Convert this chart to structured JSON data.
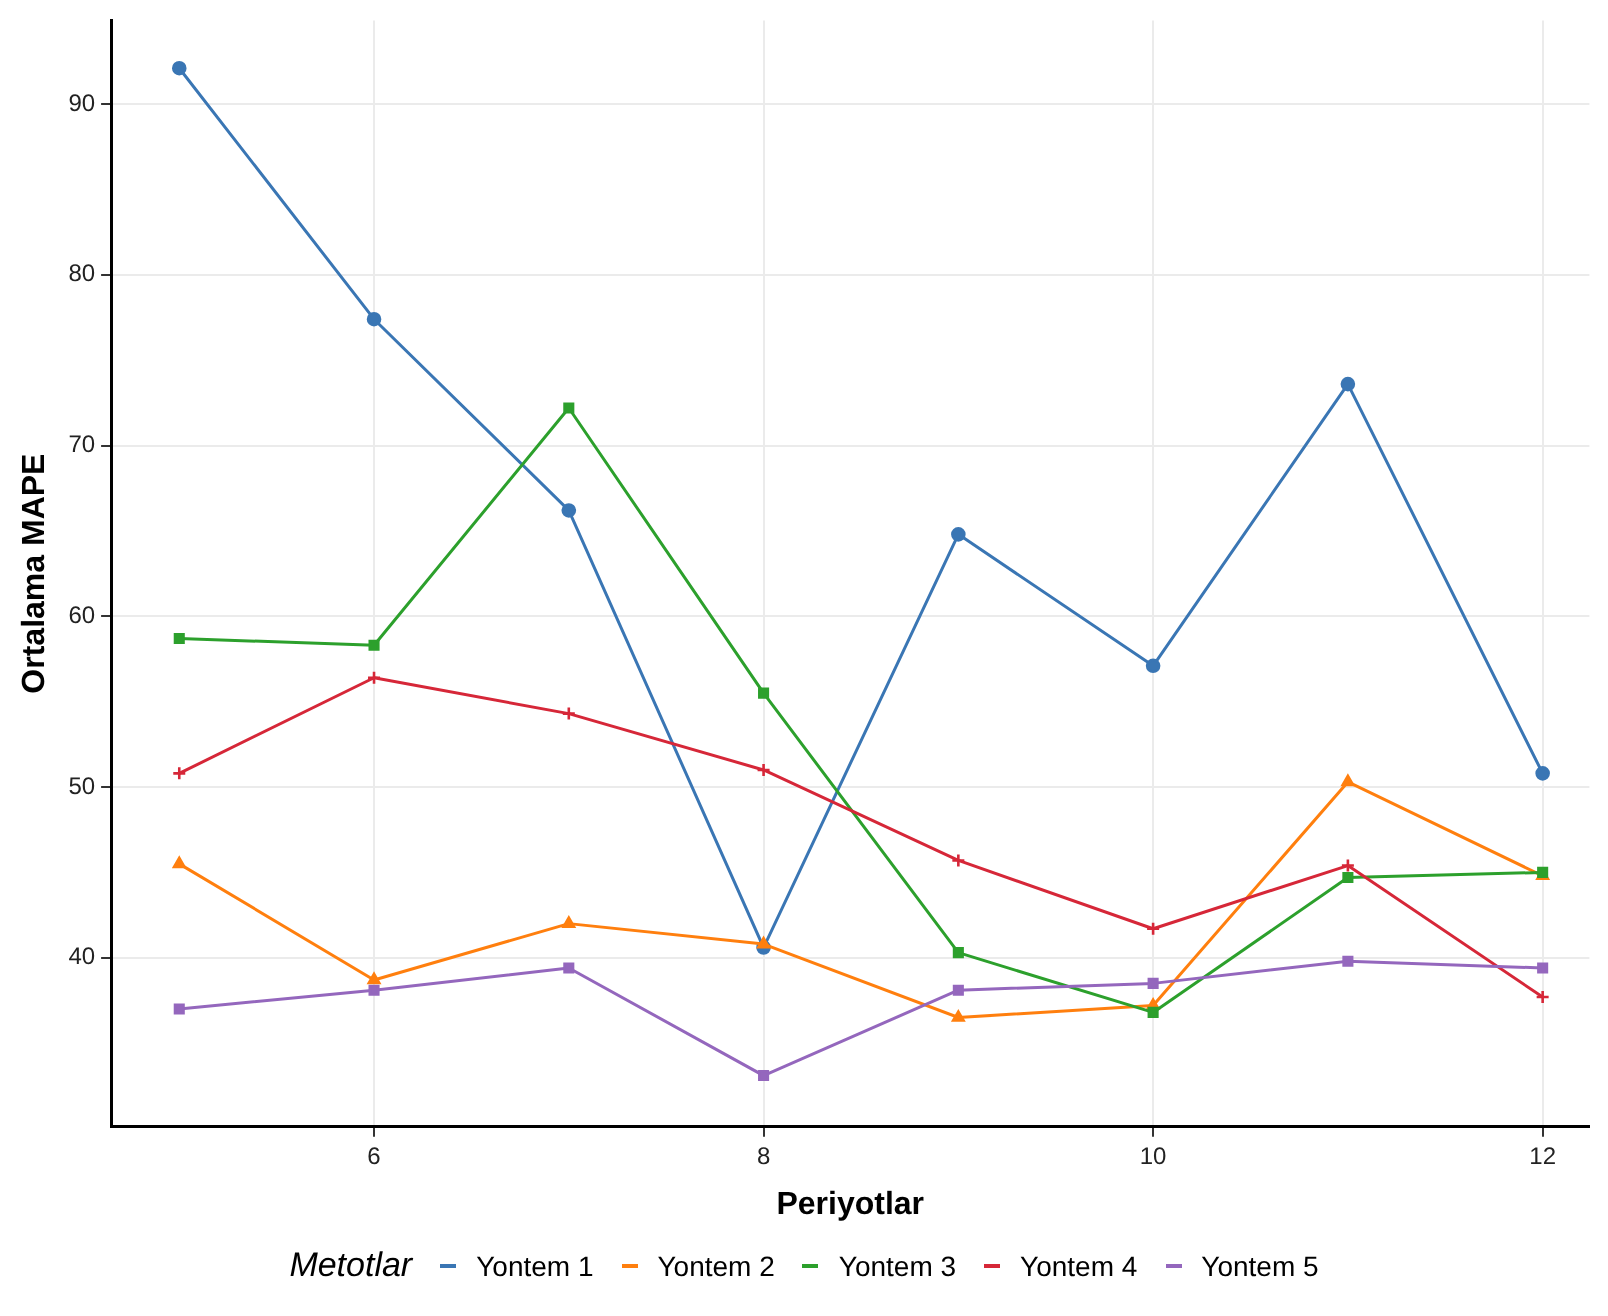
{
  "chart_data": {
    "type": "line",
    "xlabel": "Periyotlar",
    "ylabel": "Ortalama MAPE",
    "legend_title": "Metotlar",
    "legend": "bottom",
    "grid": true,
    "line_style": "solid",
    "x": [
      5,
      6,
      7,
      8,
      9,
      10,
      11,
      12
    ],
    "xlim": [
      4.65,
      12.24
    ],
    "xticks": [
      6,
      8,
      10,
      12
    ],
    "ylim": [
      30.1,
      94.9
    ],
    "yticks": [
      40,
      50,
      60,
      70,
      80,
      90
    ],
    "series": [
      {
        "name": "Yontem 1",
        "color": "#3a76b4",
        "marker": "circle",
        "values": [
          92.1,
          77.4,
          66.2,
          40.6,
          64.8,
          57.1,
          73.6,
          50.8
        ]
      },
      {
        "name": "Yontem 2",
        "color": "#ff7f0e",
        "marker": "triangle",
        "values": [
          45.5,
          38.7,
          42.0,
          40.8,
          36.5,
          37.2,
          50.3,
          44.8
        ]
      },
      {
        "name": "Yontem 3",
        "color": "#2ca02c",
        "marker": "square",
        "values": [
          58.7,
          58.3,
          72.2,
          55.5,
          40.3,
          36.8,
          44.7,
          45.0
        ]
      },
      {
        "name": "Yontem 4",
        "color": "#d62738",
        "marker": "cross",
        "values": [
          50.8,
          56.4,
          54.3,
          51.0,
          45.7,
          41.7,
          45.4,
          37.7
        ]
      },
      {
        "name": "Yontem 5",
        "color": "#9467bd",
        "marker": "square",
        "values": [
          37.0,
          38.1,
          39.4,
          33.1,
          38.1,
          38.5,
          39.8,
          39.4
        ]
      }
    ]
  }
}
